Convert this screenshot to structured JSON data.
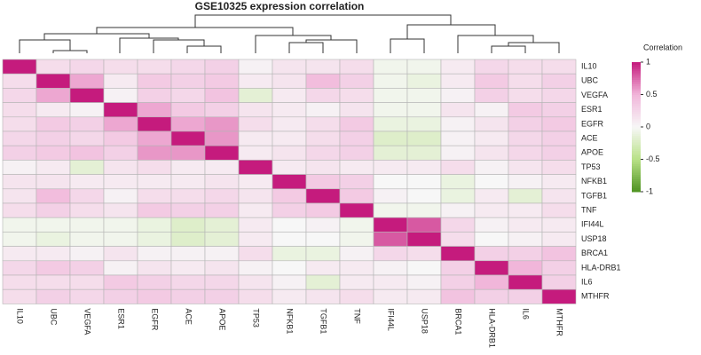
{
  "chart_data": {
    "type": "heatmap",
    "title": "GSE10325 expression correlation",
    "rows": [
      "IL10",
      "UBC",
      "VEGFA",
      "ESR1",
      "EGFR",
      "ACE",
      "APOE",
      "TP53",
      "NFKB1",
      "TGFB1",
      "TNF",
      "IFI44L",
      "USP18",
      "BRCA1",
      "HLA-DRB1",
      "IL6",
      "MTHFR"
    ],
    "columns": [
      "IL10",
      "UBC",
      "VEGFA",
      "ESR1",
      "EGFR",
      "ACE",
      "APOE",
      "TP53",
      "NFKB1",
      "TGFB1",
      "TNF",
      "IFI44L",
      "USP18",
      "BRCA1",
      "HLA-DRB1",
      "IL6",
      "MTHFR"
    ],
    "values": [
      [
        1,
        0.2,
        0.25,
        0.2,
        0.2,
        0.25,
        0.3,
        0.05,
        0.15,
        0.15,
        0.2,
        -0.05,
        -0.05,
        0.1,
        0.25,
        0.2,
        0.2
      ],
      [
        0.2,
        1,
        0.55,
        0.1,
        0.35,
        0.3,
        0.35,
        0.1,
        0.15,
        0.45,
        0.3,
        -0.05,
        -0.1,
        0.1,
        0.35,
        0.2,
        0.3
      ],
      [
        0.25,
        0.55,
        1,
        0.05,
        0.3,
        0.25,
        0.4,
        -0.15,
        0.1,
        0.25,
        0.2,
        -0.05,
        -0.05,
        0.05,
        0.3,
        0.2,
        0.25
      ],
      [
        0.2,
        0.1,
        0.05,
        1,
        0.55,
        0.35,
        0.3,
        0.15,
        0.1,
        0.05,
        0.15,
        -0.05,
        -0.05,
        0.15,
        0.05,
        0.35,
        0.3
      ],
      [
        0.2,
        0.35,
        0.3,
        0.55,
        1,
        0.55,
        0.6,
        0.2,
        0.1,
        0.2,
        0.35,
        -0.1,
        -0.1,
        0.05,
        0.15,
        0.3,
        0.35
      ],
      [
        0.25,
        0.3,
        0.25,
        0.35,
        0.55,
        1,
        0.6,
        0.1,
        0.1,
        0.2,
        0.3,
        -0.2,
        -0.2,
        0.05,
        0.1,
        0.25,
        0.3
      ],
      [
        0.3,
        0.35,
        0.4,
        0.3,
        0.6,
        0.6,
        1,
        0.1,
        0.15,
        0.25,
        0.3,
        -0.15,
        -0.15,
        0.05,
        0.15,
        0.25,
        0.3
      ],
      [
        0.05,
        0.1,
        -0.15,
        0.15,
        0.2,
        0.1,
        0.1,
        1,
        0.1,
        0.15,
        0.1,
        0.1,
        0.1,
        0.2,
        0.05,
        0.15,
        0.2
      ],
      [
        0.15,
        0.15,
        0.1,
        0.1,
        0.1,
        0.1,
        0.15,
        0.1,
        1,
        0.35,
        0.3,
        0,
        0,
        -0.1,
        0,
        0.05,
        0.1
      ],
      [
        0.15,
        0.45,
        0.25,
        0.05,
        0.2,
        0.2,
        0.25,
        0.15,
        0.35,
        1,
        0.35,
        0.05,
        0,
        -0.1,
        0.1,
        -0.15,
        0.15
      ],
      [
        0.2,
        0.3,
        0.2,
        0.15,
        0.35,
        0.3,
        0.3,
        0.1,
        0.3,
        0.35,
        1,
        -0.05,
        -0.05,
        0.05,
        0.1,
        0.1,
        0.2
      ],
      [
        -0.05,
        -0.05,
        -0.05,
        -0.05,
        -0.1,
        -0.2,
        -0.15,
        0.1,
        0,
        0.05,
        -0.05,
        1,
        0.8,
        0.25,
        0.05,
        0.1,
        0.1
      ],
      [
        -0.05,
        -0.1,
        -0.05,
        -0.05,
        -0.1,
        -0.2,
        -0.15,
        0.1,
        0,
        0,
        -0.05,
        0.8,
        1,
        0.2,
        0,
        0.05,
        0.1
      ],
      [
        0.1,
        0.1,
        0.05,
        0.15,
        0.05,
        0.05,
        0.05,
        0.2,
        -0.1,
        -0.1,
        0.05,
        0.25,
        0.2,
        1,
        0.3,
        0.3,
        0.4
      ],
      [
        0.25,
        0.35,
        0.3,
        0.05,
        0.15,
        0.1,
        0.15,
        0.05,
        0,
        0.1,
        0.1,
        0.05,
        0,
        0.3,
        1,
        0.5,
        0.3
      ],
      [
        0.2,
        0.2,
        0.2,
        0.35,
        0.3,
        0.25,
        0.25,
        0.15,
        0.05,
        -0.15,
        0.1,
        0.1,
        0.05,
        0.3,
        0.5,
        1,
        0.3
      ],
      [
        0.2,
        0.3,
        0.25,
        0.3,
        0.35,
        0.3,
        0.3,
        0.2,
        0.1,
        0.15,
        0.2,
        0.1,
        0.1,
        0.4,
        0.3,
        0.3,
        1
      ]
    ],
    "colorbar_title": "Correlation",
    "zlim": [
      -1,
      1
    ],
    "zticks": [
      1,
      0.5,
      0,
      -0.5,
      -1
    ],
    "colors": [
      "#4d9221",
      "#b8e186",
      "#f7f7f7",
      "#f1b6da",
      "#c51b7d"
    ]
  }
}
